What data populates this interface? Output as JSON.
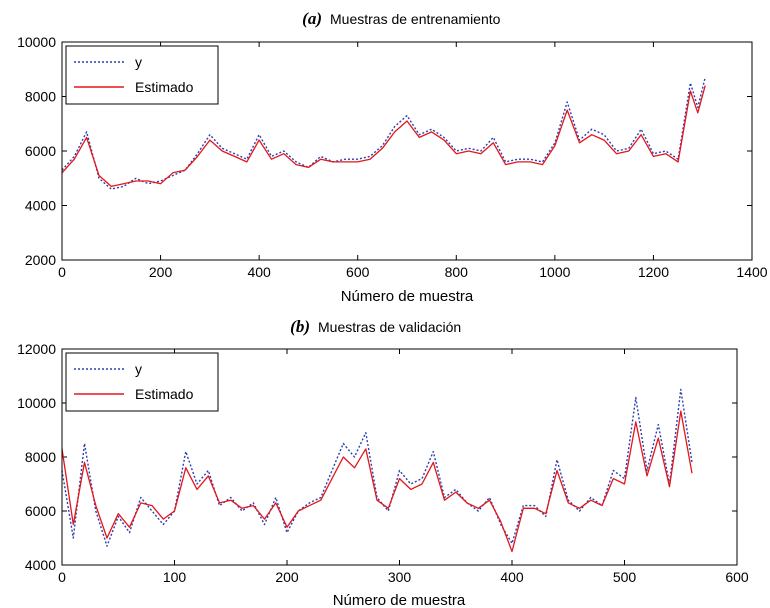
{
  "chart_data": [
    {
      "type": "line",
      "panel_letter": "(a)",
      "title": "Muestras de entrenamiento",
      "xlabel": "Número de muestra",
      "ylabel": "",
      "xlim": [
        0,
        1400
      ],
      "ylim": [
        2000,
        10000
      ],
      "xticks": [
        "0",
        "200",
        "400",
        "600",
        "800",
        "1000",
        "1200",
        "1400"
      ],
      "yticks": [
        "2000",
        "4000",
        "6000",
        "8000",
        "10000"
      ],
      "legend": {
        "position": "top-left",
        "entries": [
          "y",
          "Estimado"
        ]
      },
      "grid": false,
      "series": [
        {
          "name": "y",
          "style": "dotted",
          "color": "#2b3fae",
          "x": [
            0,
            25,
            50,
            75,
            100,
            125,
            150,
            175,
            200,
            225,
            250,
            275,
            300,
            325,
            350,
            375,
            400,
            425,
            450,
            475,
            500,
            525,
            550,
            575,
            600,
            625,
            650,
            675,
            700,
            725,
            750,
            775,
            800,
            825,
            850,
            875,
            900,
            925,
            950,
            975,
            1000,
            1025,
            1050,
            1075,
            1100,
            1125,
            1150,
            1175,
            1200,
            1225,
            1250,
            1275,
            1290,
            1305
          ],
          "values": [
            5300,
            5800,
            6700,
            5000,
            4600,
            4700,
            5000,
            4800,
            4900,
            5100,
            5300,
            5900,
            6600,
            6100,
            5900,
            5700,
            6600,
            5800,
            6000,
            5600,
            5400,
            5800,
            5600,
            5700,
            5700,
            5800,
            6200,
            6900,
            7300,
            6600,
            6800,
            6500,
            6000,
            6100,
            6000,
            6500,
            5600,
            5700,
            5700,
            5600,
            6300,
            7800,
            6400,
            6800,
            6600,
            6000,
            6100,
            6800,
            5900,
            6000,
            5700,
            8500,
            7600,
            8700
          ]
        },
        {
          "name": "Estimado",
          "style": "solid",
          "color": "#e4161b",
          "x": [
            0,
            25,
            50,
            75,
            100,
            125,
            150,
            175,
            200,
            225,
            250,
            275,
            300,
            325,
            350,
            375,
            400,
            425,
            450,
            475,
            500,
            525,
            550,
            575,
            600,
            625,
            650,
            675,
            700,
            725,
            750,
            775,
            800,
            825,
            850,
            875,
            900,
            925,
            950,
            975,
            1000,
            1025,
            1050,
            1075,
            1100,
            1125,
            1150,
            1175,
            1200,
            1225,
            1250,
            1275,
            1290,
            1305
          ],
          "values": [
            5200,
            5700,
            6500,
            5100,
            4700,
            4800,
            4900,
            4900,
            4800,
            5200,
            5300,
            5800,
            6400,
            6000,
            5800,
            5600,
            6400,
            5700,
            5900,
            5500,
            5400,
            5700,
            5600,
            5600,
            5600,
            5700,
            6100,
            6700,
            7100,
            6500,
            6700,
            6400,
            5900,
            6000,
            5900,
            6300,
            5500,
            5600,
            5600,
            5500,
            6200,
            7500,
            6300,
            6600,
            6400,
            5900,
            6000,
            6600,
            5800,
            5900,
            5600,
            8200,
            7400,
            8400
          ]
        }
      ]
    },
    {
      "type": "line",
      "panel_letter": "(b)",
      "title": "Muestras de validación",
      "xlabel": "Número de muestra",
      "ylabel": "",
      "xlim": [
        0,
        600
      ],
      "ylim": [
        4000,
        12000
      ],
      "xticks": [
        "0",
        "100",
        "200",
        "300",
        "400",
        "500",
        "600"
      ],
      "yticks": [
        "4000",
        "6000",
        "8000",
        "10000",
        "12000"
      ],
      "legend": {
        "position": "top-left",
        "entries": [
          "y",
          "Estimado"
        ]
      },
      "grid": false,
      "series": [
        {
          "name": "y",
          "style": "dotted",
          "color": "#2b3fae",
          "x": [
            0,
            10,
            20,
            30,
            40,
            50,
            60,
            70,
            80,
            90,
            100,
            110,
            120,
            130,
            140,
            150,
            160,
            170,
            180,
            190,
            200,
            210,
            220,
            230,
            240,
            250,
            260,
            270,
            280,
            290,
            300,
            310,
            320,
            330,
            340,
            350,
            360,
            370,
            380,
            390,
            400,
            410,
            420,
            430,
            440,
            450,
            460,
            470,
            480,
            490,
            500,
            510,
            520,
            530,
            540,
            550,
            560
          ],
          "values": [
            7500,
            5000,
            8500,
            6000,
            4700,
            5800,
            5200,
            6500,
            6000,
            5500,
            6000,
            8200,
            7000,
            7500,
            6200,
            6500,
            6000,
            6300,
            5500,
            6500,
            5200,
            6000,
            6300,
            6500,
            7500,
            8500,
            8000,
            8900,
            6500,
            6000,
            7500,
            7000,
            7200,
            8200,
            6500,
            6800,
            6300,
            6000,
            6500,
            5500,
            4800,
            6200,
            6200,
            5800,
            7900,
            6400,
            6000,
            6500,
            6200,
            7500,
            7200,
            10200,
            7500,
            9200,
            7000,
            10500,
            7800
          ]
        },
        {
          "name": "Estimado",
          "style": "solid",
          "color": "#e4161b",
          "x": [
            0,
            10,
            20,
            30,
            40,
            50,
            60,
            70,
            80,
            90,
            100,
            110,
            120,
            130,
            140,
            150,
            160,
            170,
            180,
            190,
            200,
            210,
            220,
            230,
            240,
            250,
            260,
            270,
            280,
            290,
            300,
            310,
            320,
            330,
            340,
            350,
            360,
            370,
            380,
            390,
            400,
            410,
            420,
            430,
            440,
            450,
            460,
            470,
            480,
            490,
            500,
            510,
            520,
            530,
            540,
            550,
            560
          ],
          "values": [
            8300,
            5500,
            7800,
            6200,
            5000,
            5900,
            5400,
            6300,
            6200,
            5700,
            6000,
            7600,
            6800,
            7300,
            6300,
            6400,
            6100,
            6200,
            5700,
            6300,
            5400,
            6000,
            6200,
            6400,
            7200,
            8000,
            7600,
            8300,
            6400,
            6100,
            7200,
            6800,
            7000,
            7800,
            6400,
            6700,
            6300,
            6100,
            6400,
            5600,
            4500,
            6100,
            6100,
            5900,
            7500,
            6300,
            6100,
            6400,
            6200,
            7200,
            7000,
            9300,
            7300,
            8700,
            6900,
            9700,
            7400
          ]
        }
      ]
    }
  ]
}
